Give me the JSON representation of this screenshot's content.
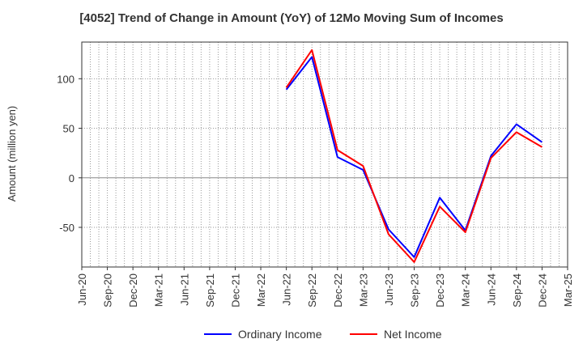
{
  "chart_data": {
    "type": "line",
    "title": "[4052]  Trend of Change in Amount (YoY) of 12Mo Moving Sum of Incomes",
    "xlabel": "",
    "ylabel": "Amount (million yen)",
    "categories": [
      "Jun-20",
      "Sep-20",
      "Dec-20",
      "Mar-21",
      "Jun-21",
      "Sep-21",
      "Dec-21",
      "Mar-22",
      "Jun-22",
      "Sep-22",
      "Dec-22",
      "Mar-23",
      "Jun-23",
      "Sep-23",
      "Dec-23",
      "Mar-24",
      "Jun-24",
      "Sep-24",
      "Dec-24",
      "Mar-25"
    ],
    "yticks": [
      -50,
      0,
      50,
      100
    ],
    "ylim": [
      -90,
      137
    ],
    "grid": true,
    "legend_position": "bottom",
    "series": [
      {
        "name": "Ordinary Income",
        "color": "#0000ff",
        "values": [
          null,
          null,
          null,
          null,
          null,
          null,
          null,
          null,
          89,
          122,
          21,
          8,
          -52,
          -80,
          -20,
          -53,
          22,
          54,
          36,
          null
        ]
      },
      {
        "name": "Net Income",
        "color": "#ff0000",
        "values": [
          null,
          null,
          null,
          null,
          null,
          null,
          null,
          null,
          91,
          129,
          28,
          12,
          -57,
          -85,
          -29,
          -55,
          20,
          46,
          31,
          null
        ]
      }
    ]
  }
}
